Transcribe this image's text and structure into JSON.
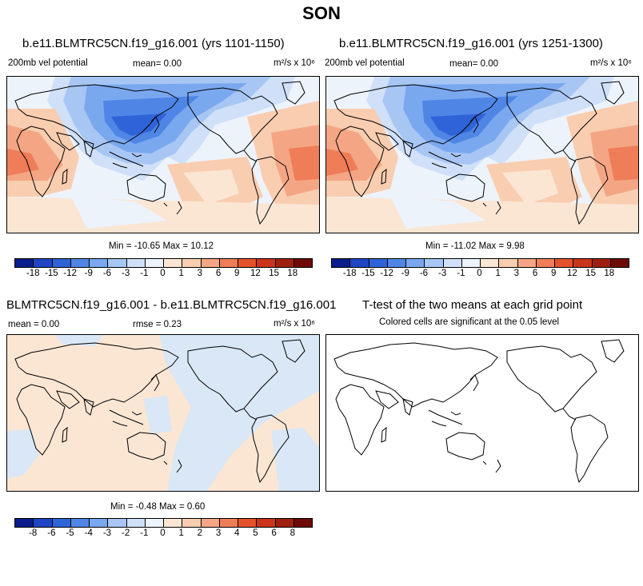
{
  "season": "SON",
  "panels": {
    "top_left": {
      "title": "b.e11.BLMTRC5CN.f19_g16.001 (yrs 1101-1150)",
      "left_label": "200mb vel potential",
      "mean_label": "mean=   0.00",
      "units": "m²/s x 10⁶",
      "minmax": "Min = -10.65 Max = 10.12"
    },
    "top_right": {
      "title": "b.e11.BLMTRC5CN.f19_g16.001 (yrs 1251-1300)",
      "left_label": "200mb vel potential",
      "mean_label": "mean=   0.00",
      "units": "m²/s x 10⁶",
      "minmax": "Min = -11.02 Max =   9.98"
    },
    "bottom_left": {
      "title": "BLMTRC5CN.f19_g16.001 - b.e11.BLMTRC5CN.f19_g16.001",
      "mean_label": "mean =   0.00",
      "rmse_label": "rmse =   0.23",
      "units": "m²/s x 10⁶",
      "minmax": "Min = -0.48 Max =  0.60"
    },
    "bottom_right": {
      "title": "T-test of the two means at each grid point",
      "subtitle": "Colored cells are significant at the 0.05 level"
    }
  },
  "colorbar_top": {
    "labels": [
      "-18",
      "-15",
      "-12",
      "-9",
      "-6",
      "-3",
      "-1",
      "0",
      "1",
      "3",
      "6",
      "9",
      "12",
      "15",
      "18"
    ],
    "colors": [
      "#0b1d8c",
      "#1f45c4",
      "#2f63d8",
      "#4f86e6",
      "#7aa8ef",
      "#a7c6f4",
      "#cfe0f8",
      "#edf3fb",
      "#fbe6d4",
      "#f9cdb0",
      "#f4a684",
      "#ef7d58",
      "#e4522c",
      "#c9341a",
      "#a0200f",
      "#6e0b08"
    ]
  },
  "colorbar_bottom": {
    "labels": [
      "-8",
      "-6",
      "-5",
      "-4",
      "-3",
      "-2",
      "-1",
      "0",
      "1",
      "2",
      "3",
      "4",
      "5",
      "6",
      "8"
    ],
    "colors": [
      "#0b1d8c",
      "#1f45c4",
      "#2f63d8",
      "#4f86e6",
      "#7aa8ef",
      "#a7c6f4",
      "#cfe0f8",
      "#edf3fb",
      "#fbe6d4",
      "#f9cdb0",
      "#f4a684",
      "#ef7d58",
      "#e4522c",
      "#c9341a",
      "#a0200f",
      "#6e0b08"
    ]
  },
  "chart_data": [
    {
      "type": "heatmap",
      "title": "b.e11.BLMTRC5CN.f19_g16.001 (yrs 1101-1150)",
      "variable": "200mb vel potential",
      "units": "m²/s x 10⁶",
      "mean": 0.0,
      "min": -10.65,
      "max": 10.12,
      "contour_levels": [
        -18,
        -15,
        -12,
        -9,
        -6,
        -3,
        -1,
        0,
        1,
        3,
        6,
        9,
        12,
        15,
        18
      ]
    },
    {
      "type": "heatmap",
      "title": "b.e11.BLMTRC5CN.f19_g16.001 (yrs 1251-1300)",
      "variable": "200mb vel potential",
      "units": "m²/s x 10⁶",
      "mean": 0.0,
      "min": -11.02,
      "max": 9.98,
      "contour_levels": [
        -18,
        -15,
        -12,
        -9,
        -6,
        -3,
        -1,
        0,
        1,
        3,
        6,
        9,
        12,
        15,
        18
      ]
    },
    {
      "type": "heatmap",
      "title": "BLMTRC5CN.f19_g16.001 - b.e11.BLMTRC5CN.f19_g16.001",
      "units": "m²/s x 10⁶",
      "mean": 0.0,
      "rmse": 0.23,
      "min": -0.48,
      "max": 0.6,
      "contour_levels": [
        -8,
        -6,
        -5,
        -4,
        -3,
        -2,
        -1,
        0,
        1,
        2,
        3,
        4,
        5,
        6,
        8
      ]
    },
    {
      "type": "heatmap",
      "title": "T-test of the two means at each grid point",
      "note": "Colored cells are significant at the 0.05 level"
    }
  ]
}
